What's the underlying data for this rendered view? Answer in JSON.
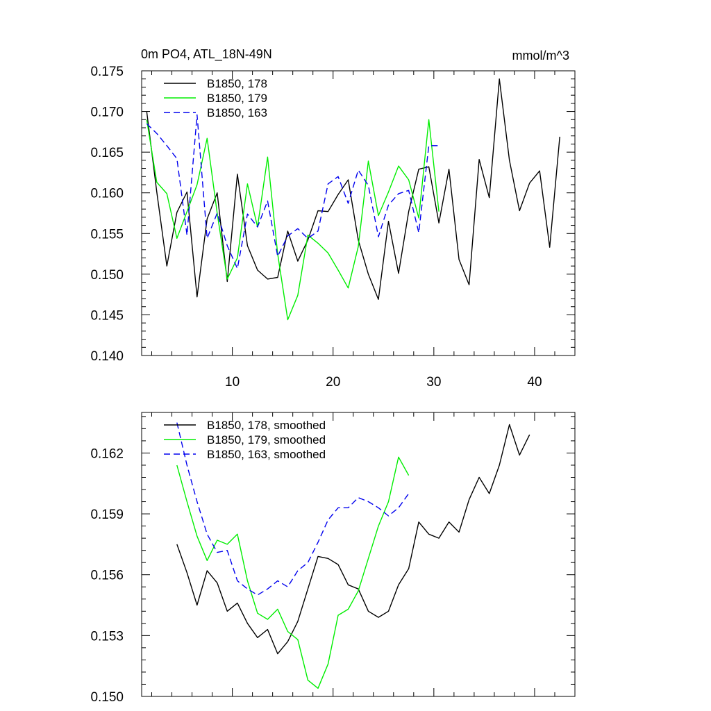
{
  "chart_data": [
    {
      "type": "line",
      "title": "0m PO4, ATL_18N-49N",
      "units": "mmol/m^3",
      "xlim": [
        1,
        44
      ],
      "ylim": [
        0.14,
        0.175
      ],
      "x_tick_labels": [
        "10",
        "20",
        "30",
        "40"
      ],
      "y_tick_labels": [
        "0.140",
        "0.145",
        "0.150",
        "0.155",
        "0.160",
        "0.165",
        "0.170",
        "0.175"
      ],
      "grid": false,
      "legend_position": "top-left",
      "series": [
        {
          "name": "B1850, 178",
          "color": "#000000",
          "dash": "solid",
          "x": [
            1.5,
            2.5,
            3.5,
            4.5,
            5.5,
            6.5,
            7.5,
            8.5,
            9.5,
            10.5,
            11.5,
            12.5,
            13.5,
            14.5,
            15.5,
            16.5,
            17.5,
            18.5,
            19.5,
            20.5,
            21.5,
            22.5,
            23.5,
            24.5,
            25.5,
            26.5,
            27.5,
            28.5,
            29.5,
            30.5,
            31.5,
            32.5,
            33.5,
            34.5,
            35.5,
            36.5,
            37.5,
            38.5,
            39.5,
            40.5,
            41.5,
            42.5
          ],
          "y": [
            0.17,
            0.1601,
            0.151,
            0.1576,
            0.1601,
            0.1472,
            0.1568,
            0.16,
            0.1491,
            0.1623,
            0.1535,
            0.1505,
            0.1494,
            0.1496,
            0.1553,
            0.1516,
            0.1542,
            0.1578,
            0.1577,
            0.1598,
            0.1616,
            0.1542,
            0.15,
            0.1469,
            0.1565,
            0.1501,
            0.1577,
            0.1629,
            0.1632,
            0.1563,
            0.1629,
            0.1518,
            0.1487,
            0.1641,
            0.1594,
            0.174,
            0.164,
            0.1578,
            0.1612,
            0.1627,
            0.1533,
            0.1669
          ]
        },
        {
          "name": "B1850, 179",
          "color": "#00ee00",
          "dash": "solid",
          "x": [
            1.5,
            2.5,
            3.5,
            4.5,
            5.5,
            6.5,
            7.5,
            8.5,
            9.5,
            10.5,
            11.5,
            12.5,
            13.5,
            14.5,
            15.5,
            16.5,
            17.5,
            18.5,
            19.5,
            20.5,
            21.5,
            22.5,
            23.5,
            24.5,
            25.5,
            26.5,
            27.5,
            28.5,
            29.5,
            30.5
          ],
          "y": [
            0.169,
            0.1613,
            0.1599,
            0.1544,
            0.1577,
            0.161,
            0.1667,
            0.1575,
            0.1494,
            0.152,
            0.1611,
            0.1558,
            0.1644,
            0.1525,
            0.1444,
            0.1474,
            0.1548,
            0.1538,
            0.1526,
            0.1505,
            0.1483,
            0.1534,
            0.1639,
            0.1572,
            0.1601,
            0.1633,
            0.1616,
            0.1569,
            0.169,
            0.1577
          ]
        },
        {
          "name": "B1850, 163",
          "color": "#0000ee",
          "dash": "dashed",
          "x": [
            1.5,
            2.5,
            3.5,
            4.5,
            5.5,
            6.5,
            7.5,
            8.5,
            9.5,
            10.5,
            11.5,
            12.5,
            13.5,
            14.5,
            15.5,
            16.5,
            17.5,
            18.5,
            19.5,
            20.5,
            21.5,
            22.5,
            23.5,
            24.5,
            25.5,
            26.5,
            27.5,
            28.5,
            29.5,
            30.5
          ],
          "y": [
            0.1685,
            0.1673,
            0.1658,
            0.1642,
            0.1548,
            0.1696,
            0.1544,
            0.1575,
            0.1535,
            0.1507,
            0.1574,
            0.1558,
            0.159,
            0.1522,
            0.1547,
            0.1556,
            0.1544,
            0.1553,
            0.1611,
            0.162,
            0.1587,
            0.1628,
            0.1609,
            0.1546,
            0.1585,
            0.1599,
            0.1603,
            0.1551,
            0.1658,
            0.1658
          ]
        }
      ]
    },
    {
      "type": "line",
      "title": "",
      "xlim": [
        1,
        44
      ],
      "ylim": [
        0.15,
        0.164
      ],
      "x_tick_labels": [],
      "y_tick_labels": [
        "0.150",
        "0.153",
        "0.156",
        "0.159",
        "0.162"
      ],
      "grid": false,
      "legend_position": "top-left",
      "series": [
        {
          "name": "B1850, 178, smoothed",
          "color": "#000000",
          "dash": "solid",
          "x": [
            4.5,
            5.5,
            6.5,
            7.5,
            8.5,
            9.5,
            10.5,
            11.5,
            12.5,
            13.5,
            14.5,
            15.5,
            16.5,
            17.5,
            18.5,
            19.5,
            20.5,
            21.5,
            22.5,
            23.5,
            24.5,
            25.5,
            26.5,
            27.5,
            28.5,
            29.5,
            30.5,
            31.5,
            32.5,
            33.5,
            34.5,
            35.5,
            36.5,
            37.5,
            38.5,
            39.5
          ],
          "y": [
            0.1575,
            0.1561,
            0.1545,
            0.1562,
            0.1556,
            0.1542,
            0.1546,
            0.1536,
            0.1529,
            0.1533,
            0.1521,
            0.1527,
            0.1537,
            0.1553,
            0.1569,
            0.1568,
            0.1565,
            0.1555,
            0.1553,
            0.1542,
            0.1539,
            0.1542,
            0.1555,
            0.1563,
            0.1586,
            0.158,
            0.1578,
            0.1586,
            0.1581,
            0.1597,
            0.1608,
            0.16,
            0.1614,
            0.1634,
            0.1619,
            0.1629
          ]
        },
        {
          "name": "B1850, 179, smoothed",
          "color": "#00ee00",
          "dash": "solid",
          "x": [
            4.5,
            5.5,
            6.5,
            7.5,
            8.5,
            9.5,
            10.5,
            11.5,
            12.5,
            13.5,
            14.5,
            15.5,
            16.5,
            17.5,
            18.5,
            19.5,
            20.5,
            21.5,
            22.5,
            23.5,
            24.5,
            25.5,
            26.5,
            27.5
          ],
          "y": [
            0.1614,
            0.1596,
            0.1579,
            0.1567,
            0.1577,
            0.1575,
            0.158,
            0.1557,
            0.1541,
            0.1538,
            0.1543,
            0.1532,
            0.1528,
            0.1508,
            0.1504,
            0.1516,
            0.154,
            0.1543,
            0.1552,
            0.1568,
            0.1584,
            0.1596,
            0.1618,
            0.1609
          ]
        },
        {
          "name": "B1850, 163, smoothed",
          "color": "#0000ee",
          "dash": "dashed",
          "x": [
            4.5,
            5.5,
            6.5,
            7.5,
            8.5,
            9.5,
            10.5,
            11.5,
            12.5,
            13.5,
            14.5,
            15.5,
            16.5,
            17.5,
            18.5,
            19.5,
            20.5,
            21.5,
            22.5,
            23.5,
            24.5,
            25.5,
            26.5,
            27.5
          ],
          "y": [
            0.1635,
            0.1614,
            0.1596,
            0.158,
            0.1571,
            0.1572,
            0.1557,
            0.1553,
            0.155,
            0.1553,
            0.1557,
            0.1554,
            0.1562,
            0.1566,
            0.1576,
            0.1587,
            0.1593,
            0.1593,
            0.1598,
            0.1596,
            0.1593,
            0.1589,
            0.1593,
            0.16
          ]
        }
      ]
    }
  ]
}
